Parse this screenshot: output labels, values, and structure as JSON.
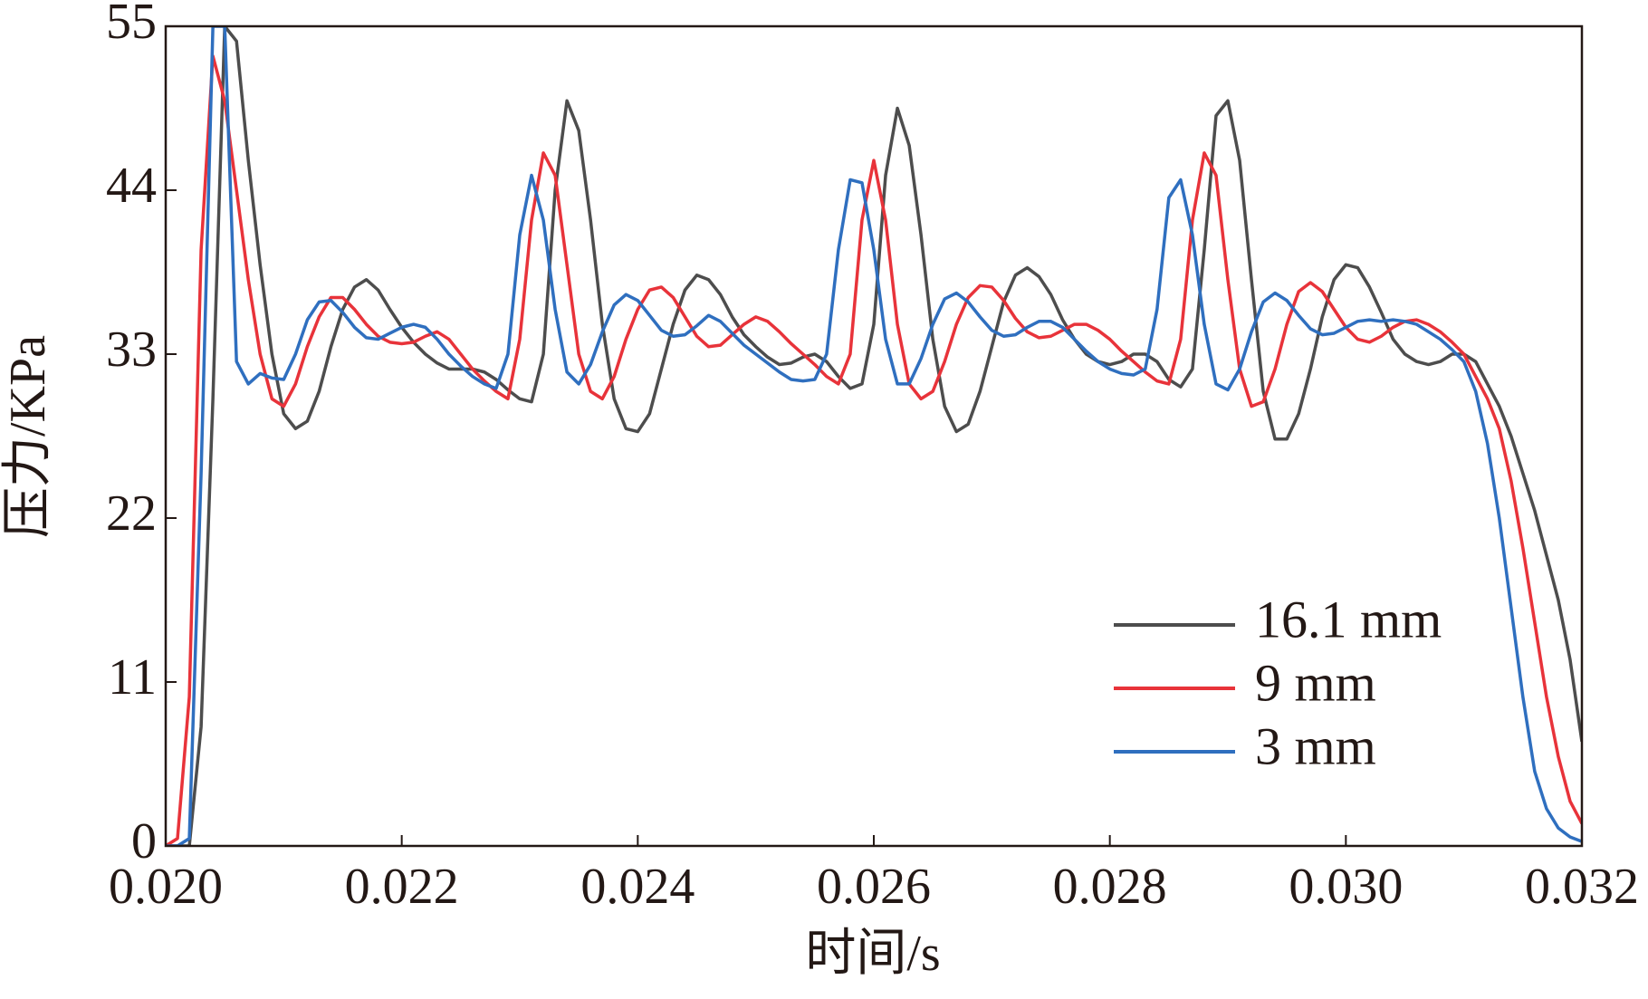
{
  "chart_data": {
    "type": "line",
    "xlabel": "时间/s",
    "ylabel": "压力/KPa",
    "x": [
      0.02,
      0.0201,
      0.0202,
      0.0203,
      0.0204,
      0.0205,
      0.0206,
      0.0207,
      0.0208,
      0.0209,
      0.021,
      0.0211,
      0.0212,
      0.0213,
      0.0214,
      0.0215,
      0.0216,
      0.0217,
      0.0218,
      0.0219,
      0.022,
      0.0221,
      0.0222,
      0.0223,
      0.0224,
      0.0225,
      0.0226,
      0.0227,
      0.0228,
      0.0229,
      0.023,
      0.0231,
      0.0232,
      0.0233,
      0.0234,
      0.0235,
      0.0236,
      0.0237,
      0.0238,
      0.0239,
      0.024,
      0.0241,
      0.0242,
      0.0243,
      0.0244,
      0.0245,
      0.0246,
      0.0247,
      0.0248,
      0.0249,
      0.025,
      0.0251,
      0.0252,
      0.0253,
      0.0254,
      0.0255,
      0.0256,
      0.0257,
      0.0258,
      0.0259,
      0.026,
      0.0261,
      0.0262,
      0.0263,
      0.0264,
      0.0265,
      0.0266,
      0.0267,
      0.0268,
      0.0269,
      0.027,
      0.0271,
      0.0272,
      0.0273,
      0.0274,
      0.0275,
      0.0276,
      0.0277,
      0.0278,
      0.0279,
      0.028,
      0.0281,
      0.0282,
      0.0283,
      0.0284,
      0.0285,
      0.0286,
      0.0287,
      0.0288,
      0.0289,
      0.029,
      0.0291,
      0.0292,
      0.0293,
      0.0294,
      0.0295,
      0.0296,
      0.0297,
      0.0298,
      0.0299,
      0.03,
      0.0301,
      0.0302,
      0.0303,
      0.0304,
      0.0305,
      0.0306,
      0.0307,
      0.0308,
      0.0309,
      0.031,
      0.0311,
      0.0312,
      0.0313,
      0.0314,
      0.0315,
      0.0316,
      0.0317,
      0.0318,
      0.0319,
      0.032
    ],
    "series": [
      {
        "name": "16.1 mm",
        "color": "#4d4d4d",
        "values": [
          0,
          0,
          0,
          8,
          30,
          55,
          54,
          46,
          39,
          33,
          29,
          28,
          28.5,
          30.5,
          33.5,
          36,
          37.5,
          38,
          37.3,
          36,
          34.8,
          33.8,
          33,
          32.4,
          32,
          32,
          32,
          31.8,
          31.3,
          30.6,
          30,
          29.8,
          33,
          44,
          50,
          48,
          42,
          35,
          30,
          28,
          27.8,
          29,
          32,
          35,
          37.3,
          38.3,
          38,
          37,
          35.5,
          34.3,
          33.5,
          32.8,
          32.3,
          32.4,
          32.8,
          33,
          32.5,
          31.5,
          30.7,
          31,
          35,
          45,
          49.5,
          47,
          41,
          34,
          29.5,
          27.8,
          28.3,
          30.5,
          33.5,
          36.5,
          38.3,
          38.8,
          38.2,
          37,
          35.3,
          34,
          33,
          32.5,
          32.3,
          32.5,
          33,
          33,
          32.5,
          31.3,
          30.8,
          32,
          40,
          49,
          50,
          46,
          38,
          30.5,
          27.3,
          27.3,
          29,
          32,
          35.5,
          38,
          39,
          38.8,
          37.5,
          35.8,
          34,
          33,
          32.5,
          32.3,
          32.5,
          33,
          33,
          32.5,
          31,
          29.5,
          27.5,
          25,
          22.5,
          19.5,
          16.5,
          12.5,
          7
        ]
      },
      {
        "name": "9 mm",
        "color": "#e8333a",
        "values": [
          0,
          0.5,
          10,
          40,
          53,
          50,
          44,
          38,
          33,
          30,
          29.5,
          31,
          33.5,
          35.5,
          36.8,
          36.8,
          36,
          35,
          34.2,
          33.8,
          33.7,
          33.8,
          34.2,
          34.5,
          34,
          33,
          32,
          31.2,
          30.5,
          30,
          34,
          42,
          46.5,
          45,
          39,
          33,
          30.5,
          30,
          31.5,
          34,
          36,
          37.3,
          37.5,
          36.8,
          35.5,
          34.2,
          33.5,
          33.6,
          34.3,
          35,
          35.5,
          35.2,
          34.5,
          33.7,
          33,
          32.3,
          31.5,
          31,
          33,
          42,
          46,
          42,
          35,
          31,
          30,
          30.5,
          32.5,
          35,
          36.8,
          37.6,
          37.5,
          36.6,
          35.4,
          34.5,
          34.1,
          34.2,
          34.6,
          35,
          35,
          34.6,
          34,
          33.2,
          32.5,
          31.8,
          31.2,
          31,
          34,
          42,
          46.5,
          45,
          38,
          32,
          29.5,
          29.8,
          32,
          35,
          37.2,
          37.8,
          37.2,
          36,
          34.8,
          34,
          33.8,
          34.2,
          34.8,
          35.2,
          35.3,
          35,
          34.5,
          33.8,
          33,
          31.5,
          30,
          28,
          24.5,
          20,
          15,
          10,
          6,
          3,
          1.5
        ]
      },
      {
        "name": "3 mm",
        "color": "#2f6fbf",
        "values": [
          0,
          0,
          0.5,
          25,
          55,
          55,
          32.5,
          31,
          31.7,
          31.4,
          31.3,
          33,
          35.3,
          36.5,
          36.6,
          35.8,
          34.8,
          34.1,
          34,
          34.4,
          34.8,
          35,
          34.8,
          34,
          33,
          32.2,
          31.5,
          31,
          30.7,
          33,
          41,
          45,
          42,
          36,
          31.8,
          31,
          32.3,
          34.5,
          36.3,
          37,
          36.6,
          35.6,
          34.6,
          34.2,
          34.3,
          34.9,
          35.6,
          35.2,
          34.4,
          33.6,
          33,
          32.4,
          31.8,
          31.3,
          31.2,
          31.3,
          33,
          40,
          44.7,
          44.5,
          40,
          34,
          31,
          31,
          32.7,
          35,
          36.7,
          37.1,
          36.5,
          35.5,
          34.6,
          34.2,
          34.3,
          34.8,
          35.2,
          35.2,
          34.8,
          34,
          33.2,
          32.5,
          32,
          31.7,
          31.6,
          32,
          36,
          43.5,
          44.7,
          41,
          35,
          31,
          30.6,
          32,
          34.5,
          36.5,
          37.1,
          36.6,
          35.6,
          34.7,
          34.3,
          34.4,
          34.8,
          35.2,
          35.3,
          35.2,
          35.3,
          35.2,
          35,
          34.5,
          34,
          33.3,
          32.5,
          30.5,
          27,
          22,
          16,
          10,
          5,
          2.5,
          1.2,
          0.6,
          0.3
        ]
      }
    ],
    "xlim": [
      0.02,
      0.032
    ],
    "xticks": [
      {
        "value": 0.02,
        "label": "0.020"
      },
      {
        "value": 0.022,
        "label": "0.022"
      },
      {
        "value": 0.024,
        "label": "0.024"
      },
      {
        "value": 0.026,
        "label": "0.026"
      },
      {
        "value": 0.028,
        "label": "0.028"
      },
      {
        "value": 0.03,
        "label": "0.030"
      },
      {
        "value": 0.032,
        "label": "0.032"
      }
    ],
    "ylim": [
      0,
      55
    ],
    "yticks": [
      0,
      11,
      22,
      33,
      44,
      55
    ],
    "grid": false,
    "legend": "lower right"
  }
}
